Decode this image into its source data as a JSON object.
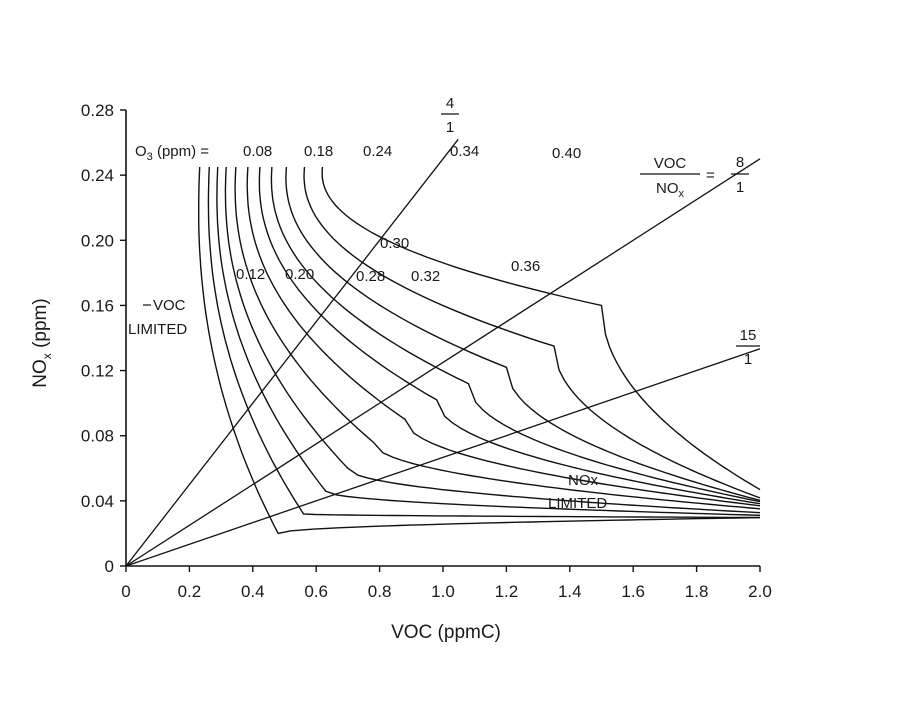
{
  "chart_data": {
    "type": "line",
    "title": "",
    "xlabel": "VOC (ppmC)",
    "ylabel_main": "NO",
    "ylabel_sub": "x",
    "ylabel_unit": "(ppm)",
    "xlim": [
      0,
      2.0
    ],
    "ylim": [
      0,
      0.28
    ],
    "xticks": [
      "0",
      "0.2",
      "0.4",
      "0.6",
      "0.8",
      "1.0",
      "1.2",
      "1.4",
      "1.6",
      "1.8",
      "2.0"
    ],
    "yticks": [
      "0",
      "0.04",
      "0.08",
      "0.12",
      "0.16",
      "0.20",
      "0.24",
      "0.28"
    ],
    "legend_prefix_main": "O",
    "legend_prefix_sub": "3",
    "legend_prefix_rest": "(ppm) =",
    "isopleths": [
      {
        "name": "0.08",
        "label": "0.08",
        "vx": 0.48,
        "vy": 0.02,
        "slope": 0.098,
        "top": 0.245
      },
      {
        "name": "0.12",
        "label": "0.12",
        "vx": 0.56,
        "vy": 0.032,
        "slope": 0.085,
        "top": 0.245
      },
      {
        "name": "0.18",
        "label": "0.18",
        "vx": 0.63,
        "vy": 0.046,
        "slope": 0.075,
        "top": 0.245
      },
      {
        "name": "0.20",
        "label": "0.20",
        "vx": 0.7,
        "vy": 0.06,
        "slope": 0.066,
        "top": 0.245
      },
      {
        "name": "0.24",
        "label": "0.24",
        "vx": 0.78,
        "vy": 0.076,
        "slope": 0.058,
        "top": 0.245
      },
      {
        "name": "0.28",
        "label": "0.28",
        "vx": 0.88,
        "vy": 0.09,
        "slope": 0.05,
        "top": 0.245
      },
      {
        "name": "0.30",
        "label": "0.30",
        "vx": 0.98,
        "vy": 0.102,
        "slope": 0.042,
        "top": 0.245
      },
      {
        "name": "0.32",
        "label": "0.32",
        "vx": 1.08,
        "vy": 0.112,
        "slope": 0.036,
        "top": 0.245
      },
      {
        "name": "0.34",
        "label": "0.34",
        "vx": 1.2,
        "vy": 0.122,
        "slope": 0.028,
        "top": 0.245
      },
      {
        "name": "0.36",
        "label": "0.36",
        "vx": 1.35,
        "vy": 0.135,
        "slope": 0.02,
        "top": 0.245
      },
      {
        "name": "0.40",
        "label": "0.40",
        "vx": 1.5,
        "vy": 0.16,
        "slope": 0.013,
        "top": 0.245
      }
    ],
    "ratio_lines": [
      {
        "name": "4-to-1",
        "numerator": "4",
        "denominator": "1",
        "slope": 0.25
      },
      {
        "name": "8-to-1",
        "numerator": "8",
        "denominator": "1",
        "slope": 0.125
      },
      {
        "name": "15-to-1",
        "numerator": "15",
        "denominator": "1",
        "slope": 0.0667
      }
    ],
    "ratio_label": {
      "numerator": "VOC",
      "denominator_main": "NO",
      "denominator_sub": "x",
      "equals": "="
    },
    "annotations": {
      "voc_limited_1": "VOC",
      "voc_limited_2": "LIMITED",
      "nox_limited_1": "NOx",
      "nox_limited_2": "LIMITED"
    }
  }
}
